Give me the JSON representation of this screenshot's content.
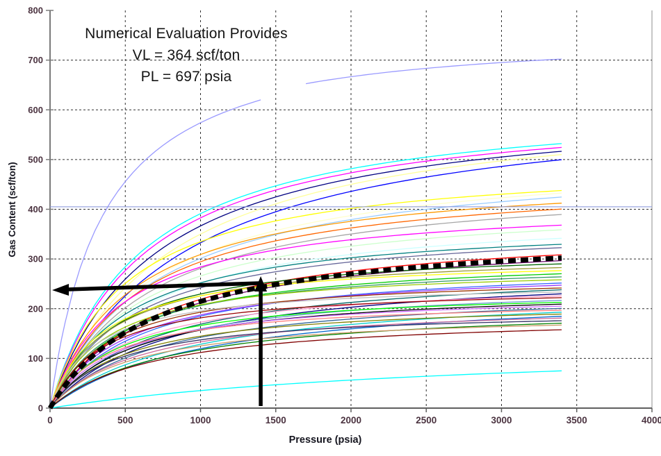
{
  "chart_data": {
    "type": "line",
    "title": "",
    "xlabel": "Pressure (psia)",
    "ylabel": "Gas Content (scf/ton)",
    "xlim": [
      0,
      4000
    ],
    "ylim": [
      0,
      800
    ],
    "xticks": [
      0,
      500,
      1000,
      1500,
      2000,
      2500,
      3000,
      3500,
      4000
    ],
    "yticks": [
      0,
      100,
      200,
      300,
      400,
      500,
      600,
      700,
      800
    ],
    "grid": true,
    "legend": "none",
    "x_data_max": 3400,
    "curve_model": "Langmuir isotherm: V = VL*P/(PL+P)",
    "annotation": {
      "lines": [
        "Numerical Evaluation Provides",
        "VL = 364 scf/ton",
        "PL = 697 psia"
      ]
    },
    "fit": {
      "vl": 364,
      "pl": 697,
      "color": "#000000",
      "style": "thick-dashed"
    },
    "markers": {
      "pressure_psia": 1400,
      "gas_content_scf_ton": 243
    },
    "arrows": [
      {
        "type": "vertical",
        "x": 1400,
        "y_from": 0,
        "y_to": 243
      },
      {
        "type": "horizontal",
        "y": 243,
        "x_from": 1400,
        "x_to": 0
      }
    ],
    "hline": {
      "y": 405,
      "color": "#8f9bdc",
      "x_from": 0,
      "x_to": 4000
    },
    "series": [
      {
        "color": "#9999FF",
        "vl": 775,
        "pl": 350,
        "xrange": [
          0,
          1400
        ]
      },
      {
        "color": "#9999FF",
        "vl": 760,
        "pl": 280,
        "xrange": [
          1700,
          3400
        ]
      },
      {
        "color": "#00FFFF",
        "vl": 626,
        "pl": 600
      },
      {
        "color": "#FF00FF",
        "vl": 620,
        "pl": 620
      },
      {
        "color": "#000080",
        "vl": 623,
        "pl": 700
      },
      {
        "color": "#FFFF99",
        "vl": 630,
        "pl": 800
      },
      {
        "color": "#0000FF",
        "vl": 632,
        "pl": 900
      },
      {
        "color": "#FFFF00",
        "vl": 502,
        "pl": 500
      },
      {
        "color": "#FFFFCC",
        "vl": 519,
        "pl": 680
      },
      {
        "color": "#99CCFF",
        "vl": 512,
        "pl": 700
      },
      {
        "color": "#FF9900",
        "vl": 479,
        "pl": 550
      },
      {
        "color": "#FF6600",
        "vl": 471,
        "pl": 600
      },
      {
        "color": "#A6A6A6",
        "vl": 464,
        "pl": 650
      },
      {
        "color": "#FF00FF",
        "vl": 420,
        "pl": 480
      },
      {
        "color": "#CCFFCC",
        "vl": 420,
        "pl": 580
      },
      {
        "color": "#CCFFFF",
        "vl": 402,
        "pl": 600
      },
      {
        "color": "#008080",
        "vl": 378,
        "pl": 500
      },
      {
        "color": "#666699",
        "vl": 375,
        "pl": 550
      },
      {
        "color": "#FF0000",
        "vl": 372,
        "pl": 700
      },
      {
        "color": "#660066",
        "vl": 356,
        "pl": 680
      },
      {
        "color": "#006600",
        "vl": 326,
        "pl": 420
      },
      {
        "color": "#999933",
        "vl": 316,
        "pl": 400
      },
      {
        "color": "#FFFF00",
        "vl": 305,
        "pl": 350
      },
      {
        "color": "#00CC00",
        "vl": 310,
        "pl": 500
      },
      {
        "color": "#339966",
        "vl": 299,
        "pl": 450
      },
      {
        "color": "#99CC00",
        "vl": 287,
        "pl": 380
      },
      {
        "color": "#3366FF",
        "vl": 296,
        "pl": 600
      },
      {
        "color": "#9933FF",
        "vl": 285,
        "pl": 520
      },
      {
        "color": "#993300",
        "vl": 270,
        "pl": 400
      },
      {
        "color": "#006666",
        "vl": 287,
        "pl": 700
      },
      {
        "color": "#C0C0C0",
        "vl": 254,
        "pl": 300
      },
      {
        "color": "#000080",
        "vl": 284,
        "pl": 800
      },
      {
        "color": "#FF99CC",
        "vl": 259,
        "pl": 500
      },
      {
        "color": "#990000",
        "vl": 245,
        "pl": 350
      },
      {
        "color": "#6699CC",
        "vl": 255,
        "pl": 600
      },
      {
        "color": "#00FF00",
        "vl": 241,
        "pl": 450
      },
      {
        "color": "#000000",
        "vl": 243,
        "pl": 550
      },
      {
        "color": "#CC66FF",
        "vl": 234,
        "pl": 480
      },
      {
        "color": "#336699",
        "vl": 242,
        "pl": 700
      },
      {
        "color": "#FF8080",
        "vl": 220,
        "pl": 400
      },
      {
        "color": "#00CCCC",
        "vl": 244,
        "pl": 900
      },
      {
        "color": "#808000",
        "vl": 217,
        "pl": 500
      },
      {
        "color": "#0066CC",
        "vl": 239,
        "pl": 1000
      },
      {
        "color": "#CC6699",
        "vl": 213,
        "pl": 600
      },
      {
        "color": "#333366",
        "vl": 199,
        "pl": 450
      },
      {
        "color": "#008000",
        "vl": 211,
        "pl": 800
      },
      {
        "color": "#CC9966",
        "vl": 194,
        "pl": 550
      },
      {
        "color": "#800000",
        "vl": 190,
        "pl": 700
      },
      {
        "color": "#00FFFF",
        "vl": 141,
        "pl": 3000
      }
    ],
    "styles": {
      "gridline_color": "#2e2e2e",
      "y_axis_color": "#7a7a7a",
      "x_axis_color": "#5f5f5f",
      "right_border_color": "#b3b3b3",
      "tick_label_color": "#4b3340",
      "arrow_color": "#000000",
      "background": "#ffffff"
    }
  }
}
